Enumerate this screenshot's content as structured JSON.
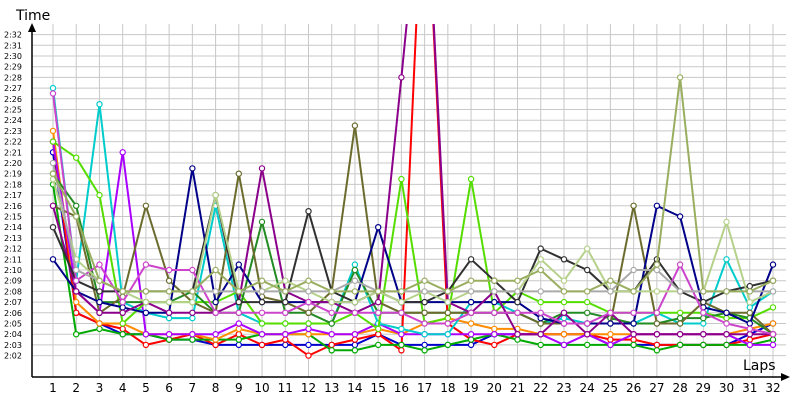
{
  "chart_data": {
    "type": "line",
    "title": "",
    "xlabel": "Laps",
    "ylabel": "Time",
    "x": [
      1,
      2,
      3,
      4,
      5,
      6,
      7,
      8,
      9,
      10,
      11,
      12,
      13,
      14,
      15,
      16,
      17,
      18,
      19,
      20,
      21,
      22,
      23,
      24,
      25,
      26,
      27,
      28,
      29,
      30,
      31,
      32
    ],
    "x_ticks": [
      "1",
      "2",
      "3",
      "4",
      "5",
      "6",
      "7",
      "8",
      "9",
      "10",
      "11",
      "12",
      "13",
      "14",
      "15",
      "16",
      "17",
      "18",
      "19",
      "20",
      "21",
      "22",
      "23",
      "24",
      "25",
      "26",
      "27",
      "28",
      "29",
      "30",
      "31",
      "32"
    ],
    "y_ticks": [
      "2:02",
      "2:03",
      "2:04",
      "2:05",
      "2:06",
      "2:07",
      "2:08",
      "2:09",
      "2:10",
      "2:11",
      "2:12",
      "2:13",
      "2:14",
      "2:15",
      "2:16",
      "2:17",
      "2:18",
      "2:19",
      "2:20",
      "2:21",
      "2:22",
      "2:23",
      "2:24",
      "2:25",
      "2:26",
      "2:27",
      "2:28",
      "2:29",
      "2:30",
      "2:31",
      "2:32"
    ],
    "y_unit": "seconds",
    "ylim": [
      120,
      153
    ],
    "grid": true,
    "legend": "none",
    "series": [
      {
        "color": "#0000cc",
        "values": [
          141,
          126,
          125,
          124,
          124,
          123.5,
          123.5,
          123,
          123,
          123,
          123,
          123,
          123,
          123,
          124,
          123,
          123,
          123,
          123,
          124,
          124,
          124,
          124,
          124,
          123,
          123,
          123,
          123,
          123,
          123,
          124,
          125
        ]
      },
      {
        "color": "#ff0000",
        "values": [
          142,
          126,
          125,
          124.5,
          123,
          123.5,
          124,
          123,
          124,
          123,
          123.5,
          122,
          123,
          123.5,
          124,
          122.5,
          170,
          125,
          123.5,
          123,
          124,
          124,
          124,
          124,
          123.5,
          123.5,
          123,
          123,
          123,
          123,
          123.5,
          124
        ]
      },
      {
        "color": "#00aa00",
        "values": [
          138,
          124,
          124.5,
          124,
          124,
          123.5,
          123.5,
          123.5,
          123.5,
          124,
          124,
          124,
          122.5,
          122.5,
          123,
          123,
          122.5,
          123,
          123.5,
          124,
          123.5,
          123,
          123,
          123,
          123,
          123,
          122.5,
          123,
          123,
          123,
          123,
          123.5
        ]
      },
      {
        "color": "#ff8c00",
        "values": [
          143,
          127,
          125,
          125,
          124,
          124,
          124,
          123.5,
          124.5,
          124,
          124,
          124,
          124,
          124,
          124.5,
          124,
          125,
          125.5,
          125,
          124.5,
          124.5,
          124,
          124,
          124,
          124,
          124,
          124,
          124,
          124,
          124,
          124.5,
          125
        ]
      },
      {
        "color": "#aa00ff",
        "values": [
          142,
          128,
          126,
          141,
          124,
          124,
          124,
          124,
          125,
          124,
          124,
          124.5,
          124,
          124,
          125,
          124,
          124,
          124,
          124,
          124,
          124,
          124,
          123,
          124,
          123,
          124,
          124,
          124,
          124,
          124,
          123,
          123
        ]
      },
      {
        "color": "#00cccc",
        "values": [
          147,
          129,
          145.5,
          127,
          126,
          125.5,
          125.5,
          136,
          126,
          125,
          125,
          125,
          125,
          130.5,
          125,
          124.5,
          124,
          124,
          127,
          127,
          126,
          125,
          125.5,
          125,
          125,
          125,
          126,
          125,
          125,
          131,
          126.5,
          128
        ]
      },
      {
        "color": "#55dd00",
        "values": [
          142,
          140.5,
          137,
          125,
          127,
          127,
          127,
          127,
          128,
          125,
          125,
          125,
          125,
          126,
          124.5,
          138.5,
          125,
          125.5,
          138.5,
          126,
          128,
          127,
          127,
          127,
          126,
          126,
          126,
          126,
          126,
          125.5,
          125.5,
          126.5
        ]
      },
      {
        "color": "#228b22",
        "values": [
          139,
          136,
          127,
          127,
          127,
          127,
          128,
          126,
          126,
          134.5,
          126,
          126,
          125,
          130,
          126,
          126,
          126,
          126,
          126,
          126,
          126,
          125,
          126,
          126,
          125.5,
          125,
          125,
          125.5,
          125.5,
          126,
          125.5,
          124
        ]
      },
      {
        "color": "#6b6b2e",
        "values": [
          136,
          135,
          126,
          127.5,
          136,
          129,
          127,
          126,
          139,
          127.5,
          127,
          126,
          128,
          143.5,
          127,
          126,
          126,
          126,
          126,
          126,
          126,
          125,
          125,
          125,
          125,
          136,
          125,
          125,
          127,
          126,
          126,
          124
        ]
      },
      {
        "color": "#000088",
        "values": [
          131,
          128,
          127,
          126.5,
          126,
          126,
          139.5,
          127,
          130.5,
          127,
          127,
          127,
          127,
          127,
          134,
          127,
          127,
          127,
          127,
          127,
          127,
          125.5,
          125,
          125,
          125,
          125,
          136,
          135,
          126.5,
          126,
          125,
          130.5
        ]
      },
      {
        "color": "#8b008b",
        "values": [
          136,
          128,
          126,
          126,
          127,
          126,
          126,
          126,
          127,
          139.5,
          128,
          127,
          127,
          126,
          127,
          148,
          170,
          127,
          126,
          128,
          124,
          124,
          126,
          124,
          126,
          124,
          124,
          124,
          124,
          124,
          124,
          124
        ]
      },
      {
        "color": "#303030",
        "values": [
          134,
          129,
          128,
          128,
          128,
          128,
          128,
          137,
          127,
          127,
          127,
          135.5,
          128,
          127,
          128,
          127,
          127,
          128,
          131,
          129,
          127,
          132,
          131,
          130,
          128,
          128,
          131,
          128,
          127,
          128,
          128.5,
          129
        ]
      },
      {
        "color": "#cc44cc",
        "values": [
          146.5,
          129,
          130.5,
          127,
          130.5,
          130,
          130,
          126,
          126,
          126,
          126,
          127,
          126,
          126,
          126,
          126,
          125,
          125,
          126,
          126,
          126,
          126,
          125,
          125,
          126,
          126,
          126,
          130.5,
          126,
          125,
          124.5,
          124
        ]
      },
      {
        "color": "#b5d18a",
        "values": [
          138.5,
          131,
          129,
          128,
          127,
          127,
          127,
          137,
          128,
          128,
          129,
          128,
          127,
          127,
          128,
          127,
          128,
          127,
          128,
          128,
          128,
          131,
          129,
          132,
          128,
          128,
          128,
          128,
          128,
          134.5,
          127,
          128
        ]
      },
      {
        "color": "#aaaaaa",
        "values": [
          140,
          130,
          129,
          128,
          128,
          128,
          128,
          128,
          128,
          128,
          128,
          128,
          128,
          129,
          128,
          128,
          128,
          128,
          128,
          128,
          128,
          128,
          128,
          128,
          128,
          130,
          130,
          128,
          128,
          128,
          128,
          128
        ]
      },
      {
        "color": "#9aae60",
        "values": [
          139,
          135,
          129,
          128,
          128,
          128,
          128,
          130,
          128,
          129,
          128,
          129,
          128,
          128,
          128,
          128,
          129,
          128,
          129,
          129,
          129,
          130,
          128,
          128,
          129,
          128,
          130.5,
          148,
          128,
          128,
          128,
          129
        ]
      }
    ]
  }
}
